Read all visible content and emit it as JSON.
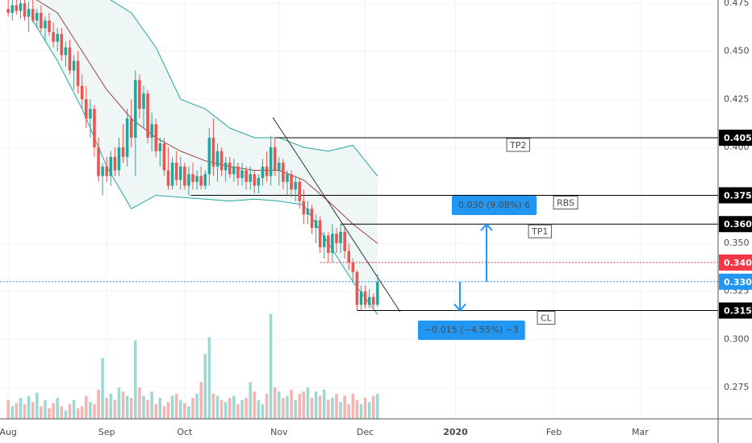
{
  "chart_data": {
    "type": "candlestick",
    "xlim": [
      -2,
      173
    ],
    "xticks": [
      {
        "value": 0,
        "label": "Aug"
      },
      {
        "value": 24,
        "label": "Sep"
      },
      {
        "value": 43,
        "label": "Oct"
      },
      {
        "value": 66,
        "label": "Nov"
      },
      {
        "value": 87,
        "label": "Dec"
      },
      {
        "value": 109,
        "label": "2020"
      },
      {
        "value": 133,
        "label": "Feb"
      },
      {
        "value": 154,
        "label": "Mar"
      }
    ],
    "ylim": [
      0.2586,
      0.4767
    ],
    "yticks": [
      0.275,
      {
        "value": 0.3,
        "label": "0.300"
      },
      0.325,
      {
        "value": 0.35,
        "label": "0.350"
      },
      {
        "value": 0.4,
        "label": "0.400"
      },
      0.425,
      {
        "value": 0.45,
        "label": "0.450"
      },
      0.475
    ],
    "grid": true,
    "up_color": "#26a69a",
    "down_color": "#ef5350",
    "volume_up_color": "#9fd8d2",
    "volume_down_color": "#f5b3b2",
    "candles": [
      [
        0.472,
        0.477,
        0.468,
        0.47
      ],
      [
        0.47,
        0.477,
        0.466,
        0.474
      ],
      [
        0.474,
        0.477,
        0.469,
        0.471
      ],
      [
        0.471,
        0.477,
        0.467,
        0.475
      ],
      [
        0.475,
        0.477,
        0.466,
        0.468
      ],
      [
        0.468,
        0.476,
        0.46,
        0.472
      ],
      [
        0.472,
        0.477,
        0.465,
        0.466
      ],
      [
        0.466,
        0.472,
        0.462,
        0.47
      ],
      [
        0.47,
        0.474,
        0.46,
        0.462
      ],
      [
        0.462,
        0.468,
        0.455,
        0.466
      ],
      [
        0.466,
        0.47,
        0.458,
        0.46
      ],
      [
        0.46,
        0.465,
        0.452,
        0.455
      ],
      [
        0.455,
        0.462,
        0.45,
        0.459
      ],
      [
        0.459,
        0.462,
        0.445,
        0.448
      ],
      [
        0.448,
        0.455,
        0.442,
        0.452
      ],
      [
        0.452,
        0.456,
        0.438,
        0.44
      ],
      [
        0.44,
        0.448,
        0.43,
        0.445
      ],
      [
        0.445,
        0.45,
        0.428,
        0.432
      ],
      [
        0.432,
        0.438,
        0.42,
        0.425
      ],
      [
        0.425,
        0.432,
        0.41,
        0.415
      ],
      [
        0.415,
        0.425,
        0.405,
        0.42
      ],
      [
        0.42,
        0.422,
        0.395,
        0.4
      ],
      [
        0.4,
        0.405,
        0.382,
        0.385
      ],
      [
        0.385,
        0.392,
        0.375,
        0.39
      ],
      [
        0.39,
        0.395,
        0.382,
        0.385
      ],
      [
        0.385,
        0.398,
        0.38,
        0.395
      ],
      [
        0.395,
        0.4,
        0.385,
        0.388
      ],
      [
        0.388,
        0.405,
        0.385,
        0.4
      ],
      [
        0.4,
        0.412,
        0.392,
        0.395
      ],
      [
        0.395,
        0.42,
        0.39,
        0.415
      ],
      [
        0.415,
        0.425,
        0.4,
        0.405
      ],
      [
        0.405,
        0.44,
        0.385,
        0.435
      ],
      [
        0.435,
        0.438,
        0.415,
        0.42
      ],
      [
        0.42,
        0.432,
        0.41,
        0.428
      ],
      [
        0.428,
        0.43,
        0.402,
        0.405
      ],
      [
        0.405,
        0.418,
        0.398,
        0.412
      ],
      [
        0.412,
        0.415,
        0.395,
        0.398
      ],
      [
        0.398,
        0.405,
        0.39,
        0.402
      ],
      [
        0.402,
        0.405,
        0.385,
        0.388
      ],
      [
        0.388,
        0.4,
        0.378,
        0.38
      ],
      [
        0.38,
        0.395,
        0.378,
        0.392
      ],
      [
        0.392,
        0.398,
        0.38,
        0.383
      ],
      [
        0.383,
        0.395,
        0.378,
        0.39
      ],
      [
        0.39,
        0.392,
        0.378,
        0.38
      ],
      [
        0.38,
        0.39,
        0.375,
        0.386
      ],
      [
        0.386,
        0.392,
        0.378,
        0.382
      ],
      [
        0.382,
        0.388,
        0.378,
        0.385
      ],
      [
        0.385,
        0.39,
        0.378,
        0.38
      ],
      [
        0.38,
        0.388,
        0.378,
        0.386
      ],
      [
        0.386,
        0.41,
        0.38,
        0.405
      ],
      [
        0.405,
        0.415,
        0.385,
        0.39
      ],
      [
        0.39,
        0.402,
        0.382,
        0.398
      ],
      [
        0.398,
        0.4,
        0.385,
        0.388
      ],
      [
        0.388,
        0.395,
        0.382,
        0.392
      ],
      [
        0.392,
        0.395,
        0.384,
        0.386
      ],
      [
        0.386,
        0.394,
        0.382,
        0.39
      ],
      [
        0.39,
        0.392,
        0.38,
        0.384
      ],
      [
        0.384,
        0.392,
        0.38,
        0.388
      ],
      [
        0.388,
        0.39,
        0.378,
        0.382
      ],
      [
        0.382,
        0.39,
        0.378,
        0.386
      ],
      [
        0.386,
        0.388,
        0.376,
        0.38
      ],
      [
        0.38,
        0.386,
        0.376,
        0.384
      ],
      [
        0.384,
        0.394,
        0.38,
        0.39
      ],
      [
        0.39,
        0.398,
        0.382,
        0.385
      ],
      [
        0.385,
        0.406,
        0.38,
        0.4
      ],
      [
        0.4,
        0.405,
        0.385,
        0.388
      ],
      [
        0.388,
        0.395,
        0.38,
        0.392
      ],
      [
        0.392,
        0.394,
        0.378,
        0.382
      ],
      [
        0.382,
        0.388,
        0.375,
        0.386
      ],
      [
        0.386,
        0.388,
        0.374,
        0.378
      ],
      [
        0.378,
        0.385,
        0.372,
        0.382
      ],
      [
        0.382,
        0.384,
        0.368,
        0.372
      ],
      [
        0.372,
        0.378,
        0.36,
        0.365
      ],
      [
        0.365,
        0.372,
        0.36,
        0.368
      ],
      [
        0.368,
        0.37,
        0.355,
        0.358
      ],
      [
        0.358,
        0.365,
        0.35,
        0.362
      ],
      [
        0.362,
        0.364,
        0.345,
        0.348
      ],
      [
        0.348,
        0.356,
        0.342,
        0.354
      ],
      [
        0.354,
        0.356,
        0.34,
        0.345
      ],
      [
        0.345,
        0.36,
        0.34,
        0.355
      ],
      [
        0.355,
        0.358,
        0.345,
        0.35
      ],
      [
        0.35,
        0.36,
        0.345,
        0.356
      ],
      [
        0.356,
        0.358,
        0.342,
        0.346
      ],
      [
        0.346,
        0.35,
        0.336,
        0.34
      ],
      [
        0.34,
        0.342,
        0.33,
        0.335
      ],
      [
        0.335,
        0.336,
        0.315,
        0.318
      ],
      [
        0.318,
        0.328,
        0.315,
        0.325
      ],
      [
        0.325,
        0.328,
        0.316,
        0.318
      ],
      [
        0.318,
        0.326,
        0.316,
        0.322
      ],
      [
        0.322,
        0.324,
        0.316,
        0.318
      ],
      [
        0.318,
        0.334,
        0.317,
        0.33
      ]
    ],
    "volume": [
      18,
      12,
      15,
      20,
      14,
      22,
      16,
      25,
      12,
      18,
      10,
      15,
      20,
      12,
      8,
      14,
      18,
      10,
      12,
      22,
      16,
      14,
      28,
      58,
      20,
      24,
      18,
      30,
      26,
      22,
      20,
      75,
      30,
      22,
      18,
      26,
      14,
      20,
      12,
      16,
      22,
      24,
      18,
      15,
      12,
      20,
      24,
      35,
      62,
      78,
      24,
      22,
      18,
      16,
      20,
      22,
      14,
      18,
      20,
      35,
      26,
      18,
      14,
      24,
      100,
      30,
      26,
      20,
      22,
      28,
      18,
      24,
      26,
      30,
      20,
      26,
      22,
      28,
      18,
      20,
      24,
      16,
      22,
      14,
      24,
      18,
      14,
      20,
      16,
      22,
      24
    ],
    "bands": {
      "x": [
        6,
        12,
        18,
        24,
        30,
        36,
        42,
        48,
        54,
        60,
        66,
        72,
        78,
        84,
        90
      ],
      "upper": [
        0.49,
        0.49,
        0.485,
        0.478,
        0.47,
        0.452,
        0.425,
        0.42,
        0.41,
        0.405,
        0.405,
        0.4,
        0.398,
        0.401,
        0.385
      ],
      "lower": [
        0.466,
        0.445,
        0.42,
        0.39,
        0.368,
        0.375,
        0.374,
        0.373,
        0.372,
        0.373,
        0.372,
        0.37,
        0.35,
        0.33,
        0.313
      ],
      "basis": [
        0.478,
        0.47,
        0.45,
        0.43,
        0.415,
        0.405,
        0.398,
        0.393,
        0.39,
        0.388,
        0.388,
        0.383,
        0.372,
        0.36,
        0.35
      ],
      "band_color": "#26a69a",
      "basis_color": "#a0413d",
      "fill": "#eef7f5"
    },
    "trendline": {
      "x": [
        64.5,
        95.5
      ],
      "y": [
        0.4155,
        0.3144
      ],
      "color": "#333333"
    },
    "levels": [
      {
        "name": "TP2",
        "value": 0.405,
        "start": 65,
        "color": "#000000"
      },
      {
        "name": "RBS",
        "value": 0.375,
        "start": 44.5,
        "color": "#000000"
      },
      {
        "name": "TP1",
        "value": 0.36,
        "value_label": "0.360",
        "start": 81,
        "color": "#000000"
      },
      {
        "value": 0.34,
        "value_label": "0.340",
        "start": 76,
        "color": "#f23645",
        "dotted": true
      },
      {
        "value": 0.33,
        "value_label": "0.330",
        "start": -2,
        "color": "#2196f3",
        "dotted": true
      },
      {
        "name": "CL",
        "value": 0.315,
        "start": 85,
        "color": "#000000"
      }
    ],
    "measures": [
      {
        "text": "0.030 (9.08%) 6",
        "from": 0.33,
        "to": 0.36
      },
      {
        "text": "−0.015 (−4.55%) −3",
        "from": 0.33,
        "to": 0.315
      }
    ]
  }
}
